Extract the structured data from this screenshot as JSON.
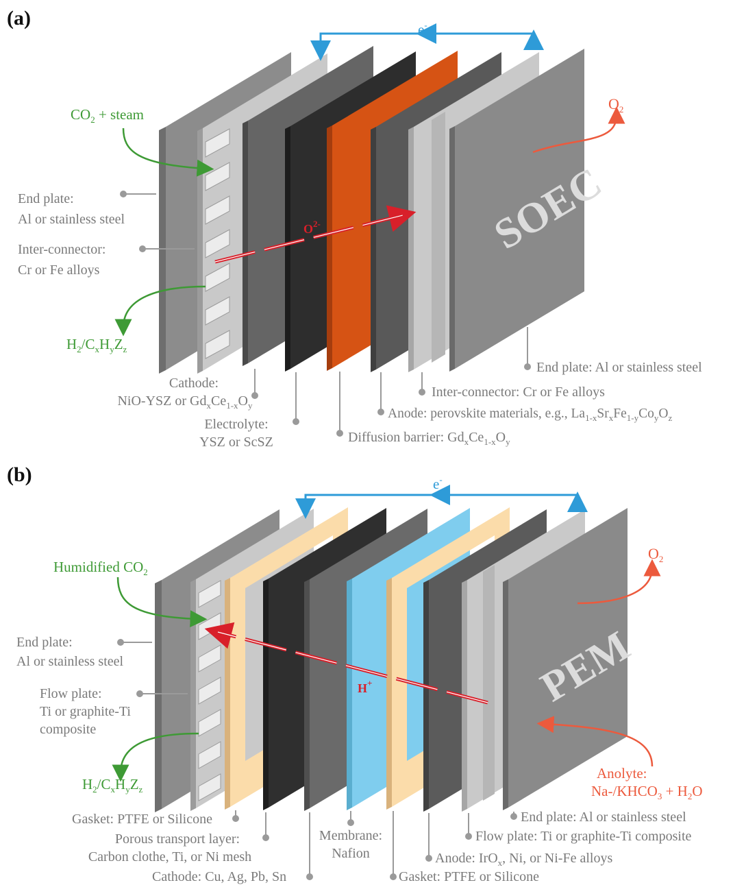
{
  "panel_a": {
    "tag": "(a)",
    "title": "SOEC",
    "electron": "e",
    "electron_sup": "-",
    "oxygen_out": {
      "main": "O",
      "sub": "2"
    },
    "ion": {
      "main": "O",
      "sup": "2-"
    },
    "feed_in": {
      "a": "CO",
      "sub": "2",
      "b": " + steam"
    },
    "product": {
      "a": "H",
      "s1": "2",
      "b": "/C",
      "s2": "x",
      "c": "H",
      "s3": "y",
      "d": "Z",
      "s4": "z"
    },
    "left_labels": {
      "end_plate_1": "End plate:",
      "end_plate_2": "Al or stainless steel",
      "interconnector_1": "Inter-connector:",
      "interconnector_2": "Cr or Fe alloys"
    },
    "bottom_labels": {
      "cathode_1": "Cathode:",
      "cathode_2a": "NiO-YSZ or Gd",
      "cathode_2s1": "x",
      "cathode_2b": "Ce",
      "cathode_2s2": "1-x",
      "cathode_2c": "O",
      "cathode_2s3": "y",
      "electrolyte_1": "Electrolyte:",
      "electrolyte_2": "YSZ or ScSZ",
      "diffusion_a": "Diffusion barrier: Gd",
      "diffusion_s1": "x",
      "diffusion_b": "Ce",
      "diffusion_s2": "1-x",
      "diffusion_c": "O",
      "diffusion_s3": "y",
      "anode_a": "Anode: perovskite materials, e.g., La",
      "anode_s1": "1-x",
      "anode_b": "Sr",
      "anode_s2": "x",
      "anode_c": "Fe",
      "anode_s3": "1-y",
      "anode_d": "Co",
      "anode_s4": "y",
      "anode_e": "O",
      "anode_s5": "z",
      "interconnector": "Inter-connector: Cr or Fe alloys",
      "end_plate": "End plate: Al or stainless steel"
    }
  },
  "panel_b": {
    "tag": "(b)",
    "title": "PEM",
    "electron": "e",
    "electron_sup": "-",
    "oxygen_out": {
      "main": "O",
      "sub": "2"
    },
    "ion": {
      "main": "H",
      "sup": "+"
    },
    "feed_in": {
      "a": "Humidified CO",
      "sub": "2"
    },
    "product": {
      "a": "H",
      "s1": "2",
      "b": "/C",
      "s2": "x",
      "c": "H",
      "s3": "y",
      "d": "Z",
      "s4": "z"
    },
    "anolyte": {
      "l1": "Anolyte:",
      "a": "Na-/KHCO",
      "s1": "3",
      "b": " + H",
      "s2": "2",
      "c": "O"
    },
    "left_labels": {
      "end_plate_1": "End plate:",
      "end_plate_2": "Al or stainless steel",
      "flow_plate_1": "Flow plate:",
      "flow_plate_2": "Ti or graphite-Ti",
      "flow_plate_3": "composite"
    },
    "bottom_labels": {
      "gasket_left": "Gasket: PTFE or Silicone",
      "ptl_1": "Porous transport layer:",
      "ptl_2": "Carbon clothe, Ti, or Ni mesh",
      "cathode": "Cathode: Cu, Ag, Pb, Sn",
      "membrane_1": "Membrane:",
      "membrane_2": "Nafion",
      "gasket_right": "Gasket: PTFE or Silicone",
      "anode_a": "Anode: IrO",
      "anode_s1": "x",
      "anode_b": ", Ni, or Ni-Fe alloys",
      "flow_plate": "Flow plate: Ti or graphite-Ti composite",
      "end_plate": "End plate: Al or stainless steel"
    }
  },
  "colors": {
    "green": "#3e9a35",
    "orange_red": "#ec5a3d",
    "blue": "#2e9bd8",
    "electrolyte_orange": "#d65314",
    "membrane_blue": "#7fcdee",
    "gasket_tan": "#fbdcaa",
    "label_gray": "#7a7a7a"
  }
}
